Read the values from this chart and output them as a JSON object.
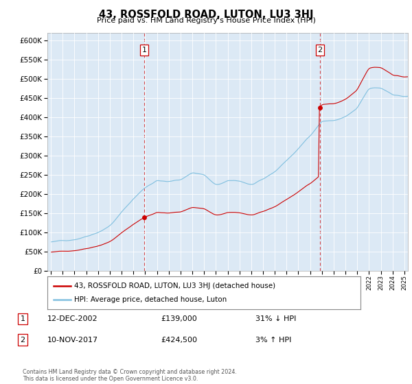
{
  "title": "43, ROSSFOLD ROAD, LUTON, LU3 3HJ",
  "subtitle": "Price paid vs. HM Land Registry's House Price Index (HPI)",
  "sale1_date": 2002.917,
  "sale1_price": 139000,
  "sale2_date": 2017.833,
  "sale2_price": 424500,
  "legend_line1": "43, ROSSFOLD ROAD, LUTON, LU3 3HJ (detached house)",
  "legend_line2": "HPI: Average price, detached house, Luton",
  "table_rows": [
    {
      "num": "1",
      "date": "12-DEC-2002",
      "price": "£139,000",
      "hpi": "31% ↓ HPI"
    },
    {
      "num": "2",
      "date": "10-NOV-2017",
      "price": "£424,500",
      "hpi": "3% ↑ HPI"
    }
  ],
  "footer": "Contains HM Land Registry data © Crown copyright and database right 2024.\nThis data is licensed under the Open Government Licence v3.0.",
  "ylim_max": 620000,
  "hpi_color": "#7fbfdf",
  "price_color": "#cc0000",
  "vline_color": "#cc0000",
  "plot_bg": "#dce9f5"
}
